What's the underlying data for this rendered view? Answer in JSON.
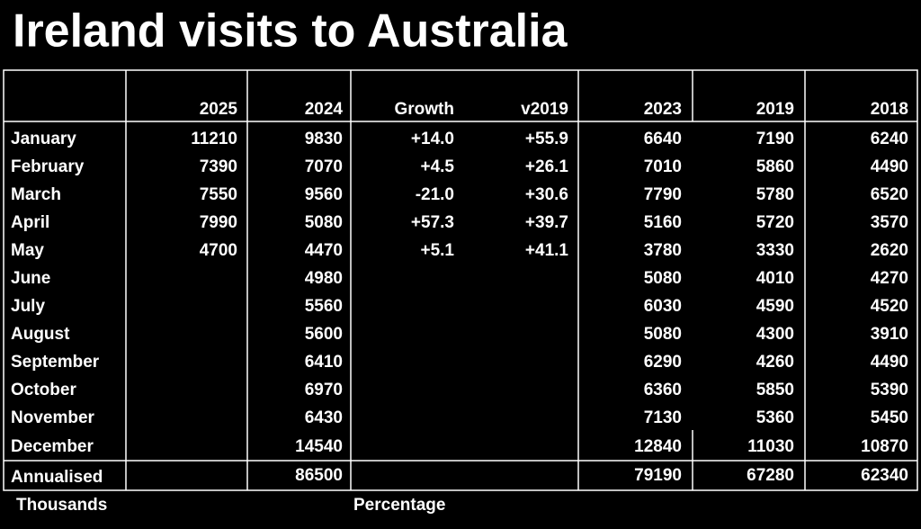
{
  "header": {
    "title": "Ireland visits to Australia"
  },
  "table": {
    "columns": [
      "2025",
      "2024",
      "Growth",
      "v2019",
      "2023",
      "2019",
      "2018"
    ],
    "rows": [
      {
        "label": "January",
        "cells": [
          11210,
          9830,
          "+14.0",
          "+55.9",
          6640,
          7190,
          6240
        ]
      },
      {
        "label": "February",
        "cells": [
          7390,
          7070,
          "+4.5",
          "+26.1",
          7010,
          5860,
          4490
        ]
      },
      {
        "label": "March",
        "cells": [
          7550,
          9560,
          "-21.0",
          "+30.6",
          7790,
          5780,
          6520
        ]
      },
      {
        "label": "April",
        "cells": [
          7990,
          5080,
          "+57.3",
          "+39.7",
          5160,
          5720,
          3570
        ]
      },
      {
        "label": "May",
        "cells": [
          4700,
          4470,
          "+5.1",
          "+41.1",
          3780,
          3330,
          2620
        ]
      },
      {
        "label": "June",
        "cells": [
          null,
          4980,
          null,
          null,
          5080,
          4010,
          4270
        ]
      },
      {
        "label": "July",
        "cells": [
          null,
          5560,
          null,
          null,
          6030,
          4590,
          4520
        ]
      },
      {
        "label": "August",
        "cells": [
          null,
          5600,
          null,
          null,
          5080,
          4300,
          3910
        ]
      },
      {
        "label": "September",
        "cells": [
          null,
          6410,
          null,
          null,
          6290,
          4260,
          4490
        ]
      },
      {
        "label": "October",
        "cells": [
          null,
          6970,
          null,
          null,
          6360,
          5850,
          5390
        ]
      },
      {
        "label": "November",
        "cells": [
          null,
          6430,
          null,
          null,
          7130,
          5360,
          5450
        ]
      },
      {
        "label": "December",
        "cells": [
          null,
          14540,
          null,
          null,
          12840,
          11030,
          10870
        ]
      }
    ],
    "total": {
      "label": "Annualised",
      "cells": [
        null,
        86500,
        null,
        null,
        79190,
        67280,
        62340
      ]
    }
  },
  "footer": {
    "notes": [
      "Thousands",
      "Percentage"
    ]
  }
}
